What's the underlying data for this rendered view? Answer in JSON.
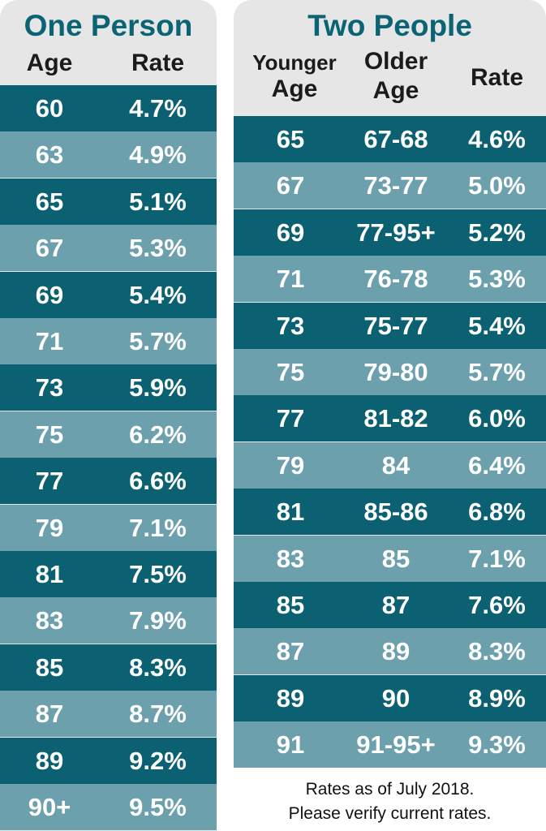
{
  "one_person": {
    "title": "One Person",
    "headers": {
      "age": "Age",
      "rate": "Rate"
    },
    "rows": [
      {
        "age": "60",
        "rate": "4.7%"
      },
      {
        "age": "63",
        "rate": "4.9%"
      },
      {
        "age": "65",
        "rate": "5.1%"
      },
      {
        "age": "67",
        "rate": "5.3%"
      },
      {
        "age": "69",
        "rate": "5.4%"
      },
      {
        "age": "71",
        "rate": "5.7%"
      },
      {
        "age": "73",
        "rate": "5.9%"
      },
      {
        "age": "75",
        "rate": "6.2%"
      },
      {
        "age": "77",
        "rate": "6.6%"
      },
      {
        "age": "79",
        "rate": "7.1%"
      },
      {
        "age": "81",
        "rate": "7.5%"
      },
      {
        "age": "83",
        "rate": "7.9%"
      },
      {
        "age": "85",
        "rate": "8.3%"
      },
      {
        "age": "87",
        "rate": "8.7%"
      },
      {
        "age": "89",
        "rate": "9.2%"
      },
      {
        "age": "90+",
        "rate": "9.5%"
      }
    ]
  },
  "two_people": {
    "title": "Two People",
    "headers": {
      "younger_line1": "Younger",
      "younger_line2": "Age",
      "older_line1": "Older",
      "older_line2": "Age",
      "rate": "Rate"
    },
    "rows": [
      {
        "younger": "65",
        "older": "67-68",
        "rate": "4.6%"
      },
      {
        "younger": "67",
        "older": "73-77",
        "rate": "5.0%"
      },
      {
        "younger": "69",
        "older": "77-95+",
        "rate": "5.2%"
      },
      {
        "younger": "71",
        "older": "76-78",
        "rate": "5.3%"
      },
      {
        "younger": "73",
        "older": "75-77",
        "rate": "5.4%"
      },
      {
        "younger": "75",
        "older": "79-80",
        "rate": "5.7%"
      },
      {
        "younger": "77",
        "older": "81-82",
        "rate": "6.0%"
      },
      {
        "younger": "79",
        "older": "84",
        "rate": "6.4%"
      },
      {
        "younger": "81",
        "older": "85-86",
        "rate": "6.8%"
      },
      {
        "younger": "83",
        "older": "85",
        "rate": "7.1%"
      },
      {
        "younger": "85",
        "older": "87",
        "rate": "7.6%"
      },
      {
        "younger": "87",
        "older": "89",
        "rate": "8.3%"
      },
      {
        "younger": "89",
        "older": "90",
        "rate": "8.9%"
      },
      {
        "younger": "91",
        "older": "91-95+",
        "rate": "9.3%"
      }
    ]
  },
  "footnote": {
    "line1": "Rates as of July 2018.",
    "line2": "Please verify current rates."
  },
  "colors": {
    "title": "#0a6473",
    "row_dark": "#0b6171",
    "row_light": "#6ca0ad",
    "panel_bg": "#e6e6e7"
  }
}
